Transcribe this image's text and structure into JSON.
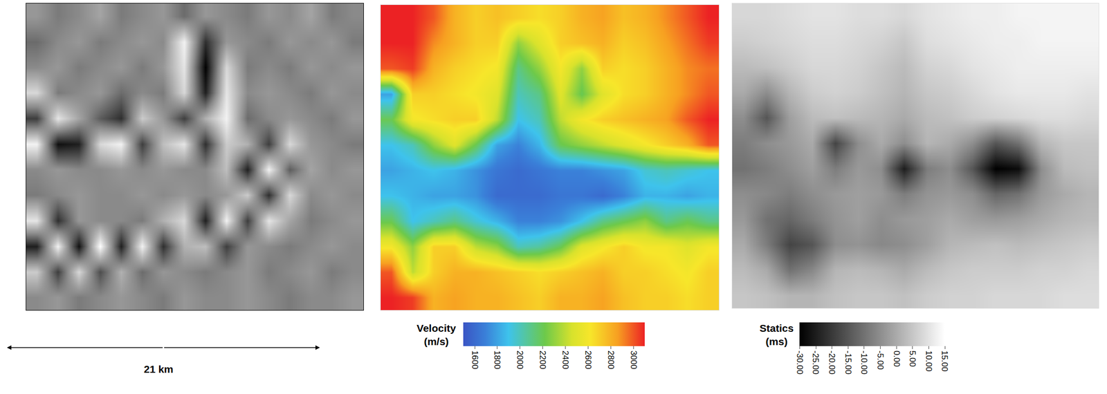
{
  "chart_data": [
    {
      "type": "heatmap",
      "tick_labels": false,
      "annotations": [
        {
          "text": "21 km"
        }
      ],
      "cells": [
        [
          0.1,
          -0.1,
          0.0,
          0.2,
          -0.1,
          0.0,
          0.1,
          -0.2,
          0.1,
          0.0,
          -0.1,
          0.1,
          0.0,
          0.2,
          -0.1,
          0.0
        ],
        [
          -0.2,
          0.0,
          0.1,
          -0.1,
          0.0,
          0.1,
          0.0,
          0.8,
          -0.6,
          0.1,
          0.0,
          -0.1,
          0.1,
          0.0,
          0.1,
          -0.1
        ],
        [
          0.0,
          0.1,
          -0.1,
          0.0,
          0.1,
          -0.1,
          0.1,
          0.7,
          -0.9,
          0.6,
          -0.1,
          0.0,
          -0.1,
          0.1,
          0.0,
          0.1
        ],
        [
          0.6,
          -0.1,
          0.0,
          0.1,
          -0.2,
          0.0,
          -0.1,
          0.6,
          -0.7,
          0.7,
          0.0,
          0.1,
          0.0,
          -0.1,
          0.1,
          0.0
        ],
        [
          -0.5,
          0.7,
          0.2,
          -0.3,
          -0.6,
          0.5,
          0.1,
          -0.5,
          0.3,
          0.8,
          -0.2,
          0.0,
          0.1,
          0.0,
          -0.1,
          0.1
        ],
        [
          0.8,
          -0.8,
          -0.7,
          0.6,
          0.8,
          -0.5,
          0.4,
          0.7,
          -0.6,
          0.5,
          0.3,
          -0.5,
          0.6,
          0.1,
          0.0,
          -0.1
        ],
        [
          0.0,
          0.1,
          0.0,
          0.0,
          0.1,
          0.0,
          0.1,
          0.0,
          0.0,
          0.4,
          -0.7,
          0.8,
          -0.3,
          0.2,
          0.0,
          0.1
        ],
        [
          -0.1,
          0.0,
          0.1,
          0.0,
          0.0,
          0.1,
          0.0,
          0.1,
          0.0,
          0.1,
          0.5,
          -0.6,
          0.6,
          0.0,
          0.1,
          0.0
        ],
        [
          0.7,
          -0.6,
          0.1,
          0.0,
          0.0,
          -0.1,
          0.3,
          0.6,
          -0.7,
          0.8,
          -0.5,
          0.7,
          0.2,
          -0.1,
          0.0,
          0.1
        ],
        [
          -0.7,
          0.8,
          -0.8,
          0.9,
          -0.7,
          0.8,
          -0.6,
          0.3,
          0.4,
          -0.5,
          0.1,
          0.0,
          -0.1,
          0.0,
          0.1,
          0.0
        ],
        [
          0.5,
          -0.5,
          0.6,
          -0.4,
          0.3,
          -0.2,
          0.1,
          0.0,
          -0.1,
          0.0,
          0.1,
          -0.1,
          0.0,
          0.1,
          -0.1,
          0.0
        ],
        [
          0.0,
          0.1,
          -0.1,
          0.0,
          0.1,
          0.0,
          -0.1,
          0.1,
          0.0,
          0.0,
          0.1,
          0.0,
          -0.1,
          0.0,
          0.0,
          0.1
        ]
      ]
    },
    {
      "type": "heatmap",
      "tick_labels": false,
      "colorbar": {
        "title": "Velocity (m/s)",
        "range": [
          1500,
          3100
        ],
        "ticks": [
          1600,
          1800,
          2000,
          2200,
          2400,
          2600,
          2800,
          3000
        ]
      },
      "cells": [
        [
          3100,
          3100,
          3000,
          2800,
          2700,
          2750,
          2700,
          2650,
          2700,
          2800,
          2850,
          2750,
          2800,
          2900,
          3000,
          3100
        ],
        [
          3100,
          3100,
          2900,
          2800,
          2700,
          2700,
          2300,
          2500,
          2700,
          2750,
          2800,
          2700,
          2750,
          2850,
          2950,
          3050
        ],
        [
          3000,
          3050,
          2800,
          2700,
          2650,
          2600,
          2100,
          2300,
          2600,
          2300,
          2700,
          2650,
          2700,
          2800,
          2900,
          2950
        ],
        [
          1800,
          2700,
          2700,
          2650,
          2600,
          2500,
          2000,
          2100,
          2500,
          2200,
          2500,
          2650,
          2700,
          2800,
          2900,
          3000
        ],
        [
          2200,
          2600,
          2650,
          2700,
          2700,
          2400,
          1900,
          2000,
          2400,
          2600,
          2700,
          2750,
          2800,
          2850,
          3000,
          3100
        ],
        [
          1900,
          2000,
          2300,
          2500,
          2200,
          1800,
          1700,
          1850,
          2200,
          2300,
          2400,
          2500,
          2600,
          2700,
          2800,
          3000
        ],
        [
          1800,
          1850,
          1900,
          1850,
          1750,
          1650,
          1600,
          1650,
          1700,
          1700,
          1750,
          1800,
          1950,
          2000,
          1950,
          1900
        ],
        [
          1900,
          1850,
          1800,
          1800,
          1750,
          1600,
          1600,
          1600,
          1650,
          1650,
          1600,
          1700,
          1850,
          1850,
          1800,
          1850
        ],
        [
          2200,
          1900,
          2000,
          2100,
          1950,
          1850,
          1700,
          1700,
          1750,
          1900,
          2100,
          2200,
          2300,
          2100,
          2200,
          2100
        ],
        [
          2600,
          2300,
          2700,
          2700,
          2400,
          2300,
          2000,
          2050,
          2200,
          2500,
          2600,
          2700,
          2600,
          2600,
          2500,
          2600
        ],
        [
          3000,
          2400,
          2700,
          2800,
          2800,
          2750,
          2700,
          2650,
          2700,
          2750,
          2800,
          2700,
          2700,
          2650,
          2600,
          2700
        ],
        [
          3100,
          3050,
          2800,
          2850,
          2800,
          2800,
          2750,
          2700,
          2800,
          2800,
          2850,
          2750,
          2700,
          2700,
          2650,
          2700
        ]
      ]
    },
    {
      "type": "heatmap",
      "tick_labels": false,
      "colorbar": {
        "title": "Statics (ms)",
        "range": [
          -30,
          15
        ],
        "ticks": [
          {
            "value": -30,
            "label": "-30.00"
          },
          {
            "value": -25,
            "label": "-25.00"
          },
          {
            "value": -20,
            "label": "-20.00"
          },
          {
            "value": -15,
            "label": "-15.00"
          },
          {
            "value": -10,
            "label": "-10.00"
          },
          {
            "value": -5,
            "label": "-5.00"
          },
          {
            "value": 0,
            "label": "0.00"
          },
          {
            "value": 5,
            "label": "5.00"
          },
          {
            "value": 10,
            "label": "10.00"
          },
          {
            "value": 15,
            "label": "15.00"
          }
        ]
      },
      "cells": [
        [
          8,
          8,
          9,
          10,
          10,
          9,
          9,
          8,
          10,
          11,
          12,
          12,
          13,
          13,
          13,
          13
        ],
        [
          6,
          7,
          8,
          9,
          9,
          8,
          7,
          5,
          9,
          10,
          11,
          12,
          12,
          13,
          13,
          13
        ],
        [
          3,
          4,
          6,
          8,
          8,
          7,
          5,
          3,
          7,
          8,
          10,
          11,
          12,
          12,
          12,
          12
        ],
        [
          0,
          -5,
          2,
          6,
          7,
          6,
          4,
          2,
          5,
          6,
          8,
          10,
          11,
          11,
          11,
          10
        ],
        [
          -5,
          -15,
          -2,
          3,
          4,
          3,
          2,
          0,
          3,
          4,
          6,
          7,
          8,
          9,
          9,
          8
        ],
        [
          -8,
          -5,
          -3,
          0,
          -18,
          -5,
          0,
          -5,
          2,
          0,
          -5,
          -15,
          -10,
          2,
          5,
          5
        ],
        [
          -10,
          -8,
          -5,
          -2,
          -8,
          -3,
          -5,
          -25,
          -8,
          -5,
          -15,
          -30,
          -28,
          -5,
          3,
          4
        ],
        [
          -5,
          -6,
          -8,
          -5,
          -3,
          -2,
          -3,
          -8,
          -4,
          -3,
          -5,
          -12,
          -10,
          -3,
          0,
          2
        ],
        [
          -3,
          -10,
          -12,
          -8,
          -4,
          -2,
          -5,
          -3,
          -2,
          0,
          -2,
          -3,
          -2,
          0,
          2,
          3
        ],
        [
          0,
          -8,
          -18,
          -15,
          -5,
          -4,
          -6,
          -5,
          -2,
          2,
          3,
          4,
          3,
          4,
          5,
          6
        ],
        [
          3,
          0,
          -10,
          -6,
          2,
          3,
          2,
          0,
          3,
          5,
          6,
          6,
          6,
          7,
          7,
          8
        ],
        [
          5,
          4,
          2,
          2,
          4,
          5,
          5,
          4,
          6,
          7,
          7,
          8,
          8,
          8,
          9,
          9
        ]
      ]
    }
  ]
}
